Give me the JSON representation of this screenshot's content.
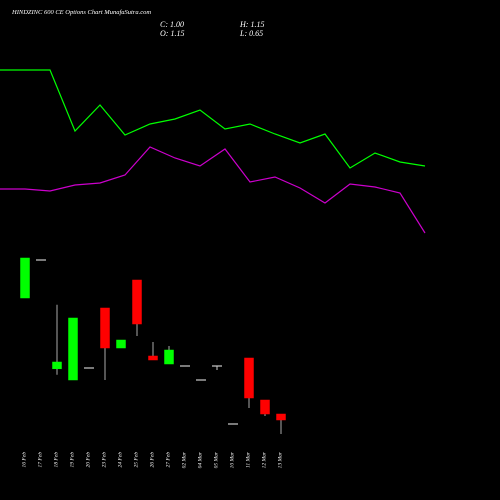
{
  "chart_data": [
    {
      "type": "line",
      "ylim": [
        0,
        100
      ],
      "series": [
        {
          "color": "#00ff00",
          "values": [
            85,
            85,
            85,
            54.5,
            67.5,
            52.5,
            58,
            60.5,
            65,
            55.5,
            58,
            53,
            48.5,
            53,
            36,
            43.5,
            39,
            37
          ]
        },
        {
          "color": "#cc00cc",
          "values": [
            25.5,
            25.5,
            24.5,
            27.5,
            28.5,
            32.5,
            46.5,
            41,
            37,
            45.5,
            29,
            31.5,
            26,
            18.5,
            28,
            26.5,
            23.5,
            3.5
          ]
        }
      ]
    },
    {
      "type": "candlestick",
      "title": "HINDZINC 600 CE Options Chart MunafaSutra.com",
      "readout": [
        "C: 1.00",
        "H: 1.15",
        "O: 1.15",
        "L: 0.65"
      ],
      "categories": [
        "16 Feb",
        "17 Feb",
        "18 Feb",
        "19 Feb",
        "20 Feb",
        "23 Feb",
        "24 Feb",
        "25 Feb",
        "26 Feb",
        "27 Feb",
        "02 Mar",
        "04 Mar",
        "05 Mar",
        "10 Mar",
        "11 Mar",
        "12 Mar",
        "13 Mar"
      ],
      "open": [
        4.05,
        5.0,
        2.28,
        2.0,
        2.3,
        3.8,
        2.8,
        4.5,
        2.6,
        2.4,
        2.35,
        2.0,
        2.35,
        0.9,
        2.55,
        1.5,
        1.15
      ],
      "high": [
        5.05,
        5.0,
        3.88,
        3.55,
        2.3,
        3.8,
        3.0,
        4.5,
        2.95,
        2.85,
        2.35,
        2.0,
        2.35,
        0.9,
        2.55,
        1.5,
        1.15
      ],
      "low": [
        4.05,
        5.0,
        2.13,
        2.0,
        2.3,
        2.0,
        2.8,
        3.1,
        2.5,
        2.4,
        2.35,
        2.0,
        2.25,
        0.9,
        1.3,
        1.1,
        0.65
      ],
      "close": [
        5.05,
        5.0,
        2.45,
        3.55,
        2.3,
        2.8,
        3.0,
        3.4,
        2.5,
        2.75,
        2.35,
        2.0,
        2.35,
        0.9,
        1.55,
        1.15,
        1.0
      ],
      "up_color": "#00ff00",
      "down_color": "#ff0000",
      "flat_color": "#cccccc",
      "ylim": [
        0.5,
        5.5
      ]
    }
  ]
}
